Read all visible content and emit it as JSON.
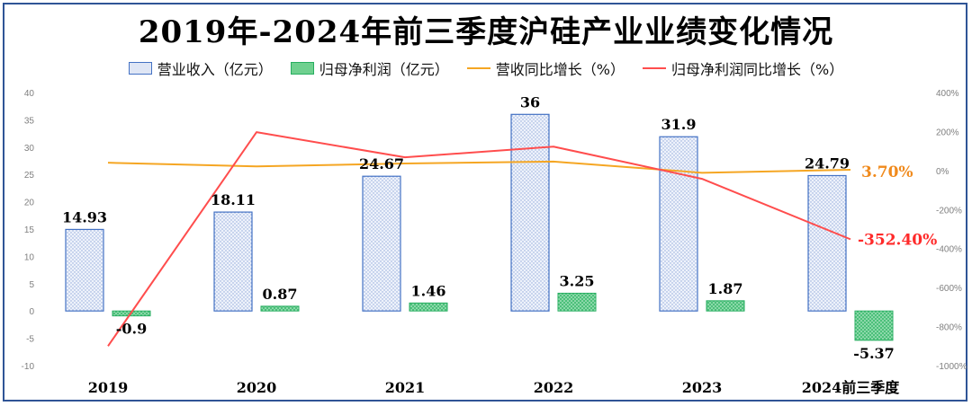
{
  "chart_data": {
    "type": "bar+line",
    "title": "2019年-2024年前三季度沪硅产业业绩变化情况",
    "categories": [
      "2019",
      "2020",
      "2021",
      "2022",
      "2023",
      "2024前三季度"
    ],
    "bar_series": [
      {
        "name": "营业收入（亿元）",
        "values": [
          14.93,
          18.11,
          24.67,
          36,
          31.9,
          24.79
        ],
        "labels": [
          "14.93",
          "18.11",
          "24.67",
          "36",
          "31.9",
          "24.79"
        ],
        "color": "#4472c4",
        "fill": "#dfe6f5"
      },
      {
        "name": "归母净利润（亿元）",
        "values": [
          -0.9,
          0.87,
          1.46,
          3.25,
          1.87,
          -5.37
        ],
        "labels": [
          "-0.9",
          "0.87",
          "1.46",
          "3.25",
          "1.87",
          "-5.37"
        ],
        "color": "#27ae60",
        "fill": "#6fd08f"
      }
    ],
    "line_series": [
      {
        "name": "营收同比增长（%）",
        "values": [
          40,
          21.3,
          36.2,
          45.9,
          -11.4,
          3.7
        ],
        "color": "#f5a623"
      },
      {
        "name": "归母净利润同比增长（%）",
        "values": [
          -900,
          196.7,
          67.8,
          122.6,
          -42.5,
          -352.4
        ],
        "color": "#ff4d4d"
      }
    ],
    "line_end_labels": [
      "3.70%",
      "-352.40%"
    ],
    "left_axis": {
      "ylim": [
        -10,
        40
      ],
      "ticks": [
        "-10",
        "-5",
        "0",
        "5",
        "10",
        "15",
        "20",
        "25",
        "30",
        "35",
        "40"
      ]
    },
    "right_axis": {
      "ylim": [
        -1000,
        400
      ],
      "ticks": [
        "-1000%",
        "-800%",
        "-600%",
        "-400%",
        "-200%",
        "0%",
        "200%",
        "400%"
      ]
    },
    "legend_position": "top-center",
    "grid": false
  }
}
